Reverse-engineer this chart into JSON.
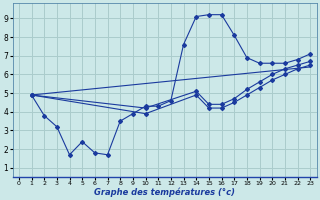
{
  "xlabel": "Graphe des températures (°c)",
  "background_color": "#cce8e8",
  "grid_color": "#aacccc",
  "line_color": "#1a3a9e",
  "xlim": [
    -0.5,
    23.5
  ],
  "ylim": [
    0.5,
    9.8
  ],
  "xticks": [
    0,
    1,
    2,
    3,
    4,
    5,
    6,
    7,
    8,
    9,
    10,
    11,
    12,
    13,
    14,
    15,
    16,
    17,
    18,
    19,
    20,
    21,
    22,
    23
  ],
  "yticks": [
    1,
    2,
    3,
    4,
    5,
    6,
    7,
    8,
    9
  ],
  "series1_x": [
    1,
    2,
    3,
    4,
    5,
    6,
    7,
    8,
    9,
    10,
    11,
    12,
    13,
    14,
    15,
    16,
    17,
    18,
    19,
    20,
    21,
    22,
    23
  ],
  "series1_y": [
    4.9,
    3.8,
    3.2,
    1.7,
    2.4,
    1.8,
    1.7,
    3.5,
    3.9,
    4.3,
    4.3,
    4.6,
    7.6,
    9.1,
    9.2,
    9.2,
    8.1,
    6.9,
    6.6,
    6.6,
    6.6,
    6.8,
    7.1
  ],
  "series2_x": [
    1,
    10,
    14,
    15,
    16,
    17,
    18,
    19,
    20,
    21,
    22,
    23
  ],
  "series2_y": [
    4.9,
    4.2,
    5.1,
    4.4,
    4.4,
    4.7,
    5.2,
    5.6,
    6.0,
    6.3,
    6.5,
    6.7
  ],
  "series3_x": [
    1,
    10,
    14,
    15,
    16,
    17,
    18,
    19,
    20,
    21,
    22,
    23
  ],
  "series3_y": [
    4.9,
    3.9,
    4.9,
    4.2,
    4.2,
    4.5,
    4.9,
    5.3,
    5.7,
    6.0,
    6.3,
    6.5
  ],
  "series4_x": [
    1,
    23
  ],
  "series4_y": [
    4.9,
    6.4
  ]
}
